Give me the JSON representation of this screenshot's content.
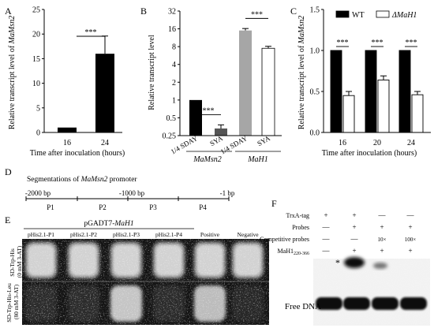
{
  "panels": {
    "A": {
      "letter": "A",
      "ylabel_prefix": "Relative transcript level of ",
      "ylabel_gene": "MaMsn2",
      "xlabel": "Time after inoculation (hours)",
      "yticks": [
        "0",
        "5",
        "10",
        "15",
        "20",
        "25"
      ],
      "sig": "***"
    },
    "B": {
      "letter": "B",
      "ylabel": "Relative transcript level",
      "yticks": [
        "0.25",
        "0.5",
        "1",
        "2",
        "4",
        "8",
        "16",
        "32"
      ],
      "xticks": [
        "1/4 SDAY",
        "SYA",
        "1/4 SDAY",
        "SYA"
      ],
      "groups": [
        "MaMsn2",
        "MaH1"
      ],
      "sig": [
        "***",
        "***"
      ]
    },
    "C": {
      "letter": "C",
      "ylabel_prefix": "Relative transcript level of ",
      "ylabel_gene": "MaMsn2",
      "xlabel": "Time after inoculation (hours)",
      "yticks": [
        "0.0",
        "0.5",
        "1.0",
        "1.5"
      ],
      "legend": [
        "WT",
        "ΔMaH1"
      ],
      "sig": [
        "***",
        "***",
        "***"
      ]
    },
    "D": {
      "letter": "D",
      "title_prefix": "Segmentations of ",
      "title_gene": "MaMsn2",
      "title_suffix": " promoter",
      "ticks": [
        "-2000 bp",
        "-1000 bp",
        "-1 bp"
      ],
      "segments": [
        "P1",
        "P2",
        "P3",
        "P4"
      ]
    },
    "E": {
      "letter": "E",
      "header_prefix": "pGADT7-",
      "header_gene": "MaH1",
      "columns": [
        "pHis2.1-P1",
        "pHis2.1-P2",
        "pHis2.1-P3",
        "pHis2.1-P4",
        "Positive",
        "Negative"
      ],
      "rows": [
        {
          "medium": "SD-Trp-His",
          "note": "(0 mM 3-AT)"
        },
        {
          "medium": "SD-Trp-His-Leu",
          "note": "(80 mM 3-AT)"
        }
      ]
    },
    "F": {
      "letter": "F",
      "row_labels": [
        "TrxA-tag",
        "Probes",
        "Competitive probes",
        "MaH1"
      ],
      "protein_sub": "220-366",
      "lanes": [
        [
          "+",
          "+",
          "—",
          "—"
        ],
        [
          "—",
          "+",
          "+",
          "+"
        ],
        [
          "—",
          "—",
          "10×",
          "100×"
        ],
        [
          "—",
          "+",
          "+",
          "+"
        ]
      ],
      "shift_marker": "*",
      "free_dna": "Free DNA"
    }
  },
  "chart_data": [
    {
      "type": "bar",
      "panel": "A",
      "categories": [
        "16",
        "24"
      ],
      "series": [
        {
          "values": [
            1.0,
            16.0
          ],
          "errors": [
            0.0,
            3.6
          ]
        }
      ],
      "ylabel": "Relative transcript level of MaMsn2",
      "xlabel": "Time after inoculation (hours)",
      "ylim": [
        0,
        25
      ],
      "significance": [
        {
          "between": [
            "16",
            "24"
          ],
          "label": "***"
        }
      ],
      "colors": [
        "#000000"
      ]
    },
    {
      "type": "bar",
      "panel": "B",
      "categories": [
        "1/4 SDAY",
        "SYA",
        "1/4 SDAY",
        "SYA"
      ],
      "groups": [
        "MaMsn2",
        "MaH1"
      ],
      "series": [
        {
          "values": [
            1.0,
            0.33,
            15.0,
            7.5
          ],
          "errors": [
            0.0,
            0.05,
            1.2,
            0.6
          ]
        }
      ],
      "ylabel": "Relative transcript level",
      "yscale": "log2",
      "ylim": [
        0.25,
        32
      ],
      "significance": [
        {
          "group": "MaMsn2",
          "label": "***"
        },
        {
          "group": "MaH1",
          "label": "***"
        }
      ],
      "colors": [
        "#000000",
        "#555555",
        "#a6a6a6",
        "#ffffff"
      ]
    },
    {
      "type": "bar",
      "panel": "C",
      "categories": [
        "16",
        "20",
        "24"
      ],
      "series": [
        {
          "name": "WT",
          "values": [
            1.0,
            1.0,
            1.0
          ],
          "errors": [
            0.0,
            0.0,
            0.0
          ]
        },
        {
          "name": "ΔMaH1",
          "values": [
            0.45,
            0.64,
            0.46
          ],
          "errors": [
            0.05,
            0.05,
            0.04
          ]
        }
      ],
      "ylabel": "Relative transcript level of MaMsn2",
      "xlabel": "Time after inoculation (hours)",
      "ylim": [
        0,
        1.5
      ],
      "legend": "top",
      "significance": [
        {
          "category": "16",
          "label": "***"
        },
        {
          "category": "20",
          "label": "***"
        },
        {
          "category": "24",
          "label": "***"
        }
      ],
      "colors": [
        "#000000",
        "#ffffff"
      ]
    }
  ]
}
